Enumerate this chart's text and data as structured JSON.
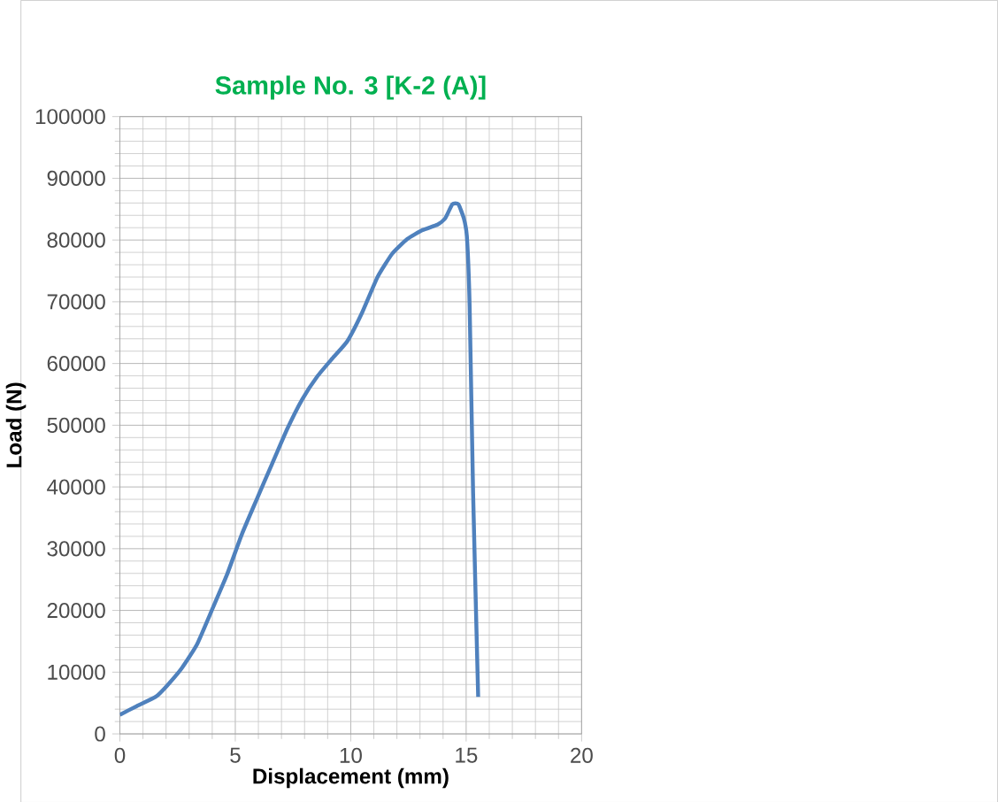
{
  "chart_data": {
    "type": "line",
    "title": "Sample No. 3 [K-2 (A)]",
    "xlabel": "Displacement (mm)",
    "ylabel": "Load (N)",
    "xlim": [
      0,
      20
    ],
    "xticks": [
      0,
      5,
      10,
      15,
      20
    ],
    "ylim": [
      0,
      100000
    ],
    "yticks": [
      0,
      10000,
      20000,
      30000,
      40000,
      50000,
      60000,
      70000,
      80000,
      90000,
      100000
    ],
    "grid": true,
    "series": [
      {
        "color": "#4f81bd",
        "x": [
          0,
          0.73,
          1.55,
          2.04,
          2.69,
          3.34,
          3.99,
          4.64,
          5.29,
          5.94,
          6.6,
          7.25,
          7.9,
          8.55,
          9.2,
          9.85,
          10.5,
          11.16,
          11.8,
          12.46,
          13.1,
          13.76,
          14.09,
          14.4,
          14.66,
          14.9,
          15.03,
          15.15,
          15.3,
          15.52
        ],
        "values": [
          3100,
          4500,
          6000,
          7800,
          10700,
          14500,
          20100,
          25800,
          32400,
          38100,
          43800,
          49400,
          54200,
          57900,
          60800,
          63600,
          68300,
          74000,
          77800,
          80200,
          81600,
          82500,
          83500,
          85800,
          85800,
          83500,
          80600,
          69300,
          39000,
          6000
        ]
      }
    ]
  }
}
